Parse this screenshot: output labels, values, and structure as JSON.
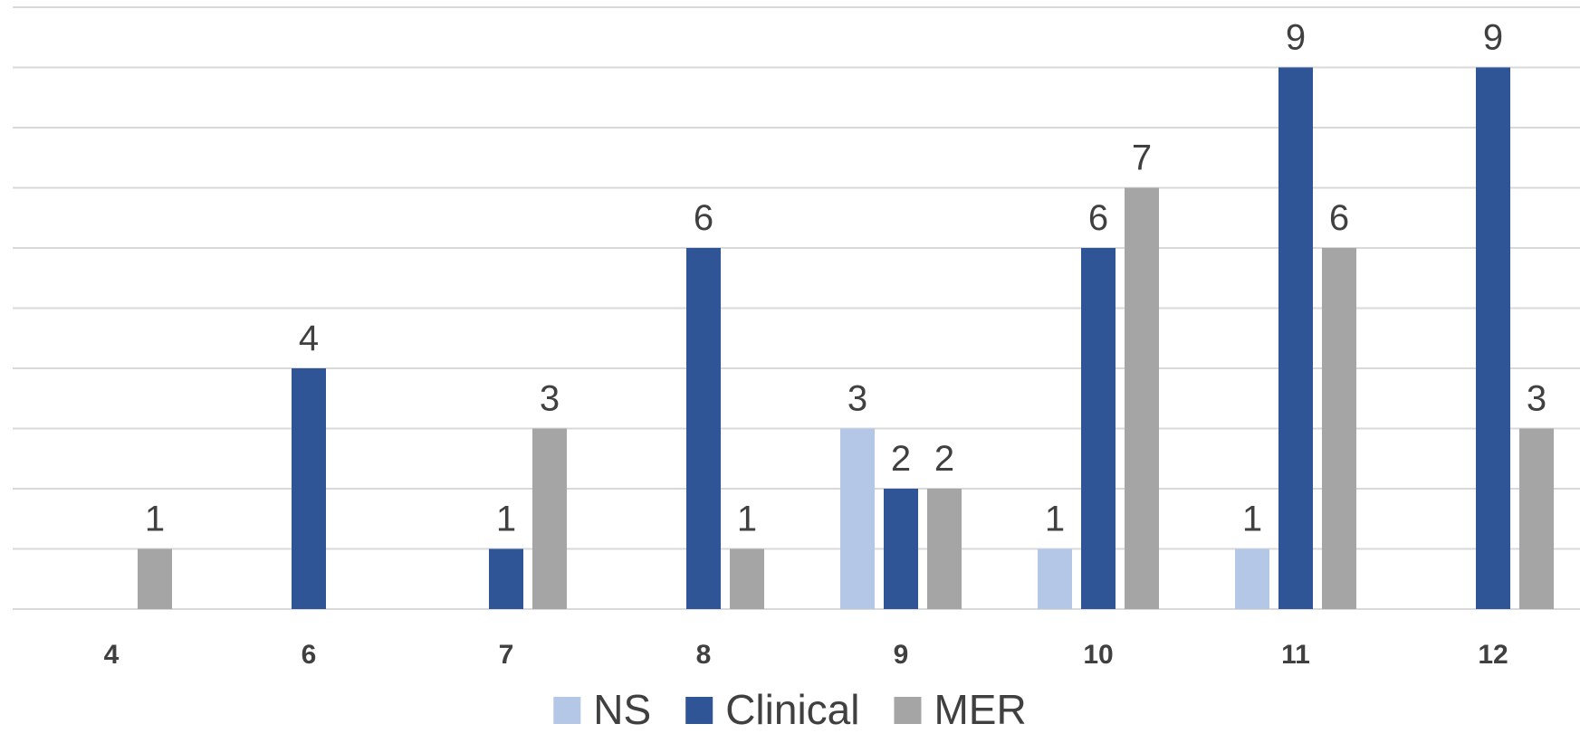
{
  "chart_data": {
    "type": "bar",
    "categories": [
      "4",
      "6",
      "7",
      "8",
      "9",
      "10",
      "11",
      "12"
    ],
    "series": [
      {
        "name": "NS",
        "color": "#b4c7e7",
        "values": [
          0,
          0,
          0,
          0,
          3,
          1,
          1,
          0
        ]
      },
      {
        "name": "Clinical",
        "color": "#2f5597",
        "values": [
          0,
          4,
          1,
          6,
          2,
          6,
          9,
          9
        ]
      },
      {
        "name": "MER",
        "color": "#a5a5a5",
        "values": [
          1,
          0,
          3,
          1,
          2,
          7,
          6,
          3
        ]
      }
    ],
    "ylim": [
      0,
      10
    ],
    "grid": true,
    "legend_position": "bottom",
    "data_labels": true
  }
}
